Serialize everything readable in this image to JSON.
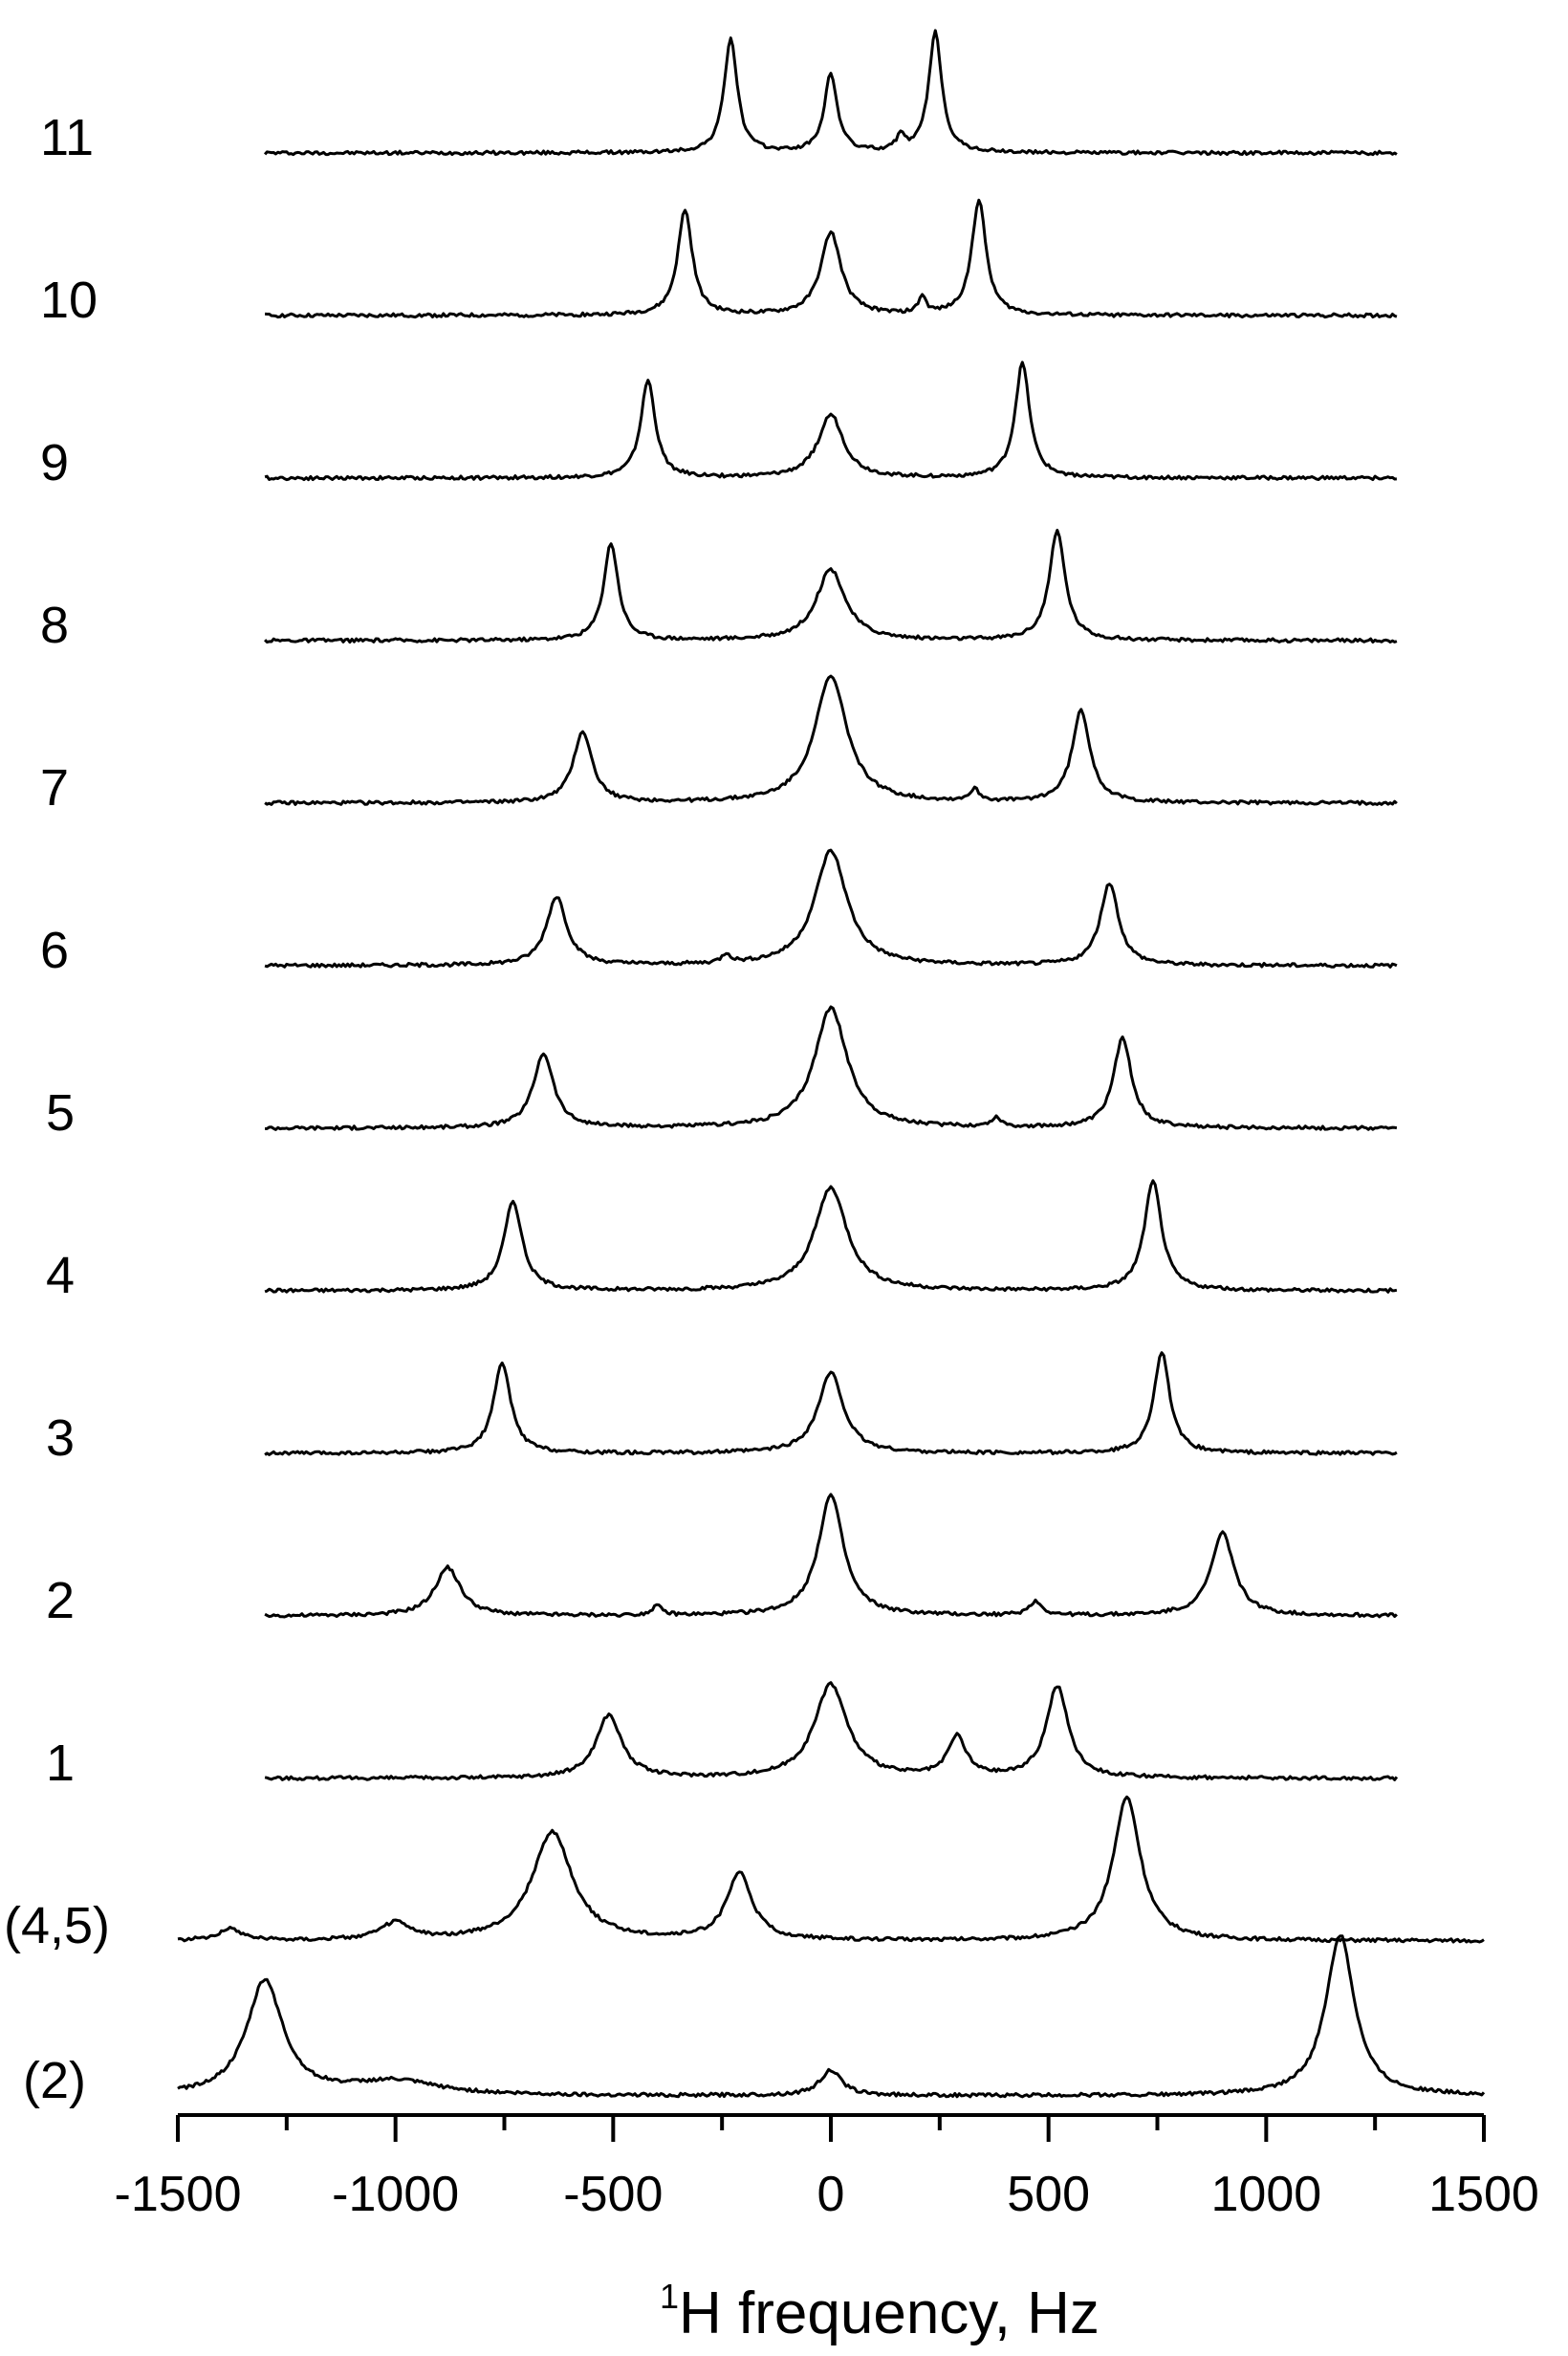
{
  "chart_data": {
    "type": "line",
    "title": "",
    "xlabel": {
      "superscript": "1",
      "text": "H frequency, Hz"
    },
    "ylabel": "",
    "xlim": [
      -1500,
      1500
    ],
    "xticks": [
      -1500,
      -1000,
      -500,
      0,
      500,
      1000,
      1500
    ],
    "xtick_labels": [
      "-1500",
      "-1000",
      "-500",
      "0",
      "500",
      "1000",
      "1500"
    ],
    "grid": false,
    "legend": "none",
    "series": [
      {
        "name": "11",
        "range": [
          -1300,
          1300
        ],
        "peaks": [
          {
            "x": -230,
            "h": 1.0,
            "w": 18
          },
          {
            "x": 0,
            "h": 0.68,
            "w": 18
          },
          {
            "x": 160,
            "h": 0.12,
            "w": 12
          },
          {
            "x": 240,
            "h": 1.05,
            "w": 18
          }
        ]
      },
      {
        "name": "10",
        "range": [
          -1300,
          1300
        ],
        "peaks": [
          {
            "x": -335,
            "h": 0.92,
            "w": 20
          },
          {
            "x": 0,
            "h": 0.72,
            "w": 28
          },
          {
            "x": 210,
            "h": 0.15,
            "w": 10
          },
          {
            "x": 340,
            "h": 1.0,
            "w": 20
          }
        ]
      },
      {
        "name": "9",
        "range": [
          -1300,
          1300
        ],
        "peaks": [
          {
            "x": -420,
            "h": 0.85,
            "w": 20
          },
          {
            "x": 0,
            "h": 0.55,
            "w": 35
          },
          {
            "x": 440,
            "h": 1.0,
            "w": 20
          }
        ]
      },
      {
        "name": "8",
        "range": [
          -1300,
          1300
        ],
        "peaks": [
          {
            "x": -505,
            "h": 0.85,
            "w": 20
          },
          {
            "x": 0,
            "h": 0.62,
            "w": 40
          },
          {
            "x": 520,
            "h": 0.95,
            "w": 22
          }
        ]
      },
      {
        "name": "7",
        "range": [
          -1300,
          1300
        ],
        "peaks": [
          {
            "x": -570,
            "h": 0.62,
            "w": 26
          },
          {
            "x": 0,
            "h": 1.1,
            "w": 45
          },
          {
            "x": 330,
            "h": 0.1,
            "w": 14
          },
          {
            "x": 575,
            "h": 0.8,
            "w": 25
          }
        ]
      },
      {
        "name": "6",
        "range": [
          -1300,
          1300
        ],
        "peaks": [
          {
            "x": -630,
            "h": 0.6,
            "w": 28
          },
          {
            "x": 0,
            "h": 1.0,
            "w": 45
          },
          {
            "x": -240,
            "h": 0.08,
            "w": 12
          },
          {
            "x": 640,
            "h": 0.72,
            "w": 25
          }
        ]
      },
      {
        "name": "5",
        "range": [
          -1300,
          1300
        ],
        "peaks": [
          {
            "x": -660,
            "h": 0.65,
            "w": 28
          },
          {
            "x": 0,
            "h": 1.05,
            "w": 45
          },
          {
            "x": 380,
            "h": 0.08,
            "w": 14
          },
          {
            "x": 670,
            "h": 0.78,
            "w": 25
          }
        ]
      },
      {
        "name": "4",
        "range": [
          -1300,
          1300
        ],
        "peaks": [
          {
            "x": -730,
            "h": 0.78,
            "w": 25
          },
          {
            "x": 0,
            "h": 0.9,
            "w": 45
          },
          {
            "x": 740,
            "h": 0.95,
            "w": 24
          }
        ]
      },
      {
        "name": "3",
        "range": [
          -1300,
          1300
        ],
        "peaks": [
          {
            "x": -755,
            "h": 0.78,
            "w": 24
          },
          {
            "x": 0,
            "h": 0.7,
            "w": 35
          },
          {
            "x": 760,
            "h": 0.88,
            "w": 22
          }
        ]
      },
      {
        "name": "2",
        "range": [
          -1300,
          1300
        ],
        "peaks": [
          {
            "x": -880,
            "h": 0.42,
            "w": 35
          },
          {
            "x": 0,
            "h": 1.05,
            "w": 35
          },
          {
            "x": -400,
            "h": 0.08,
            "w": 14
          },
          {
            "x": 470,
            "h": 0.12,
            "w": 18
          },
          {
            "x": 900,
            "h": 0.72,
            "w": 32
          }
        ]
      },
      {
        "name": "1",
        "range": [
          -1300,
          1300
        ],
        "peaks": [
          {
            "x": -510,
            "h": 0.55,
            "w": 35
          },
          {
            "x": 0,
            "h": 0.82,
            "w": 45
          },
          {
            "x": 290,
            "h": 0.35,
            "w": 25
          },
          {
            "x": 520,
            "h": 0.8,
            "w": 30
          }
        ]
      },
      {
        "name": "(4,5)",
        "range": [
          -1500,
          1500
        ],
        "peaks": [
          {
            "x": -1380,
            "h": 0.1,
            "w": 35
          },
          {
            "x": -1000,
            "h": 0.15,
            "w": 40
          },
          {
            "x": -640,
            "h": 0.95,
            "w": 55
          },
          {
            "x": -210,
            "h": 0.58,
            "w": 35
          },
          {
            "x": 680,
            "h": 1.25,
            "w": 38
          }
        ]
      },
      {
        "name": "(2)",
        "range": [
          -1500,
          1500
        ],
        "peaks": [
          {
            "x": -1300,
            "h": 1.0,
            "w": 50
          },
          {
            "x": -1000,
            "h": 0.12,
            "w": 120
          },
          {
            "x": 0,
            "h": 0.22,
            "w": 30
          },
          {
            "x": 1170,
            "h": 1.4,
            "w": 40
          }
        ]
      }
    ]
  }
}
